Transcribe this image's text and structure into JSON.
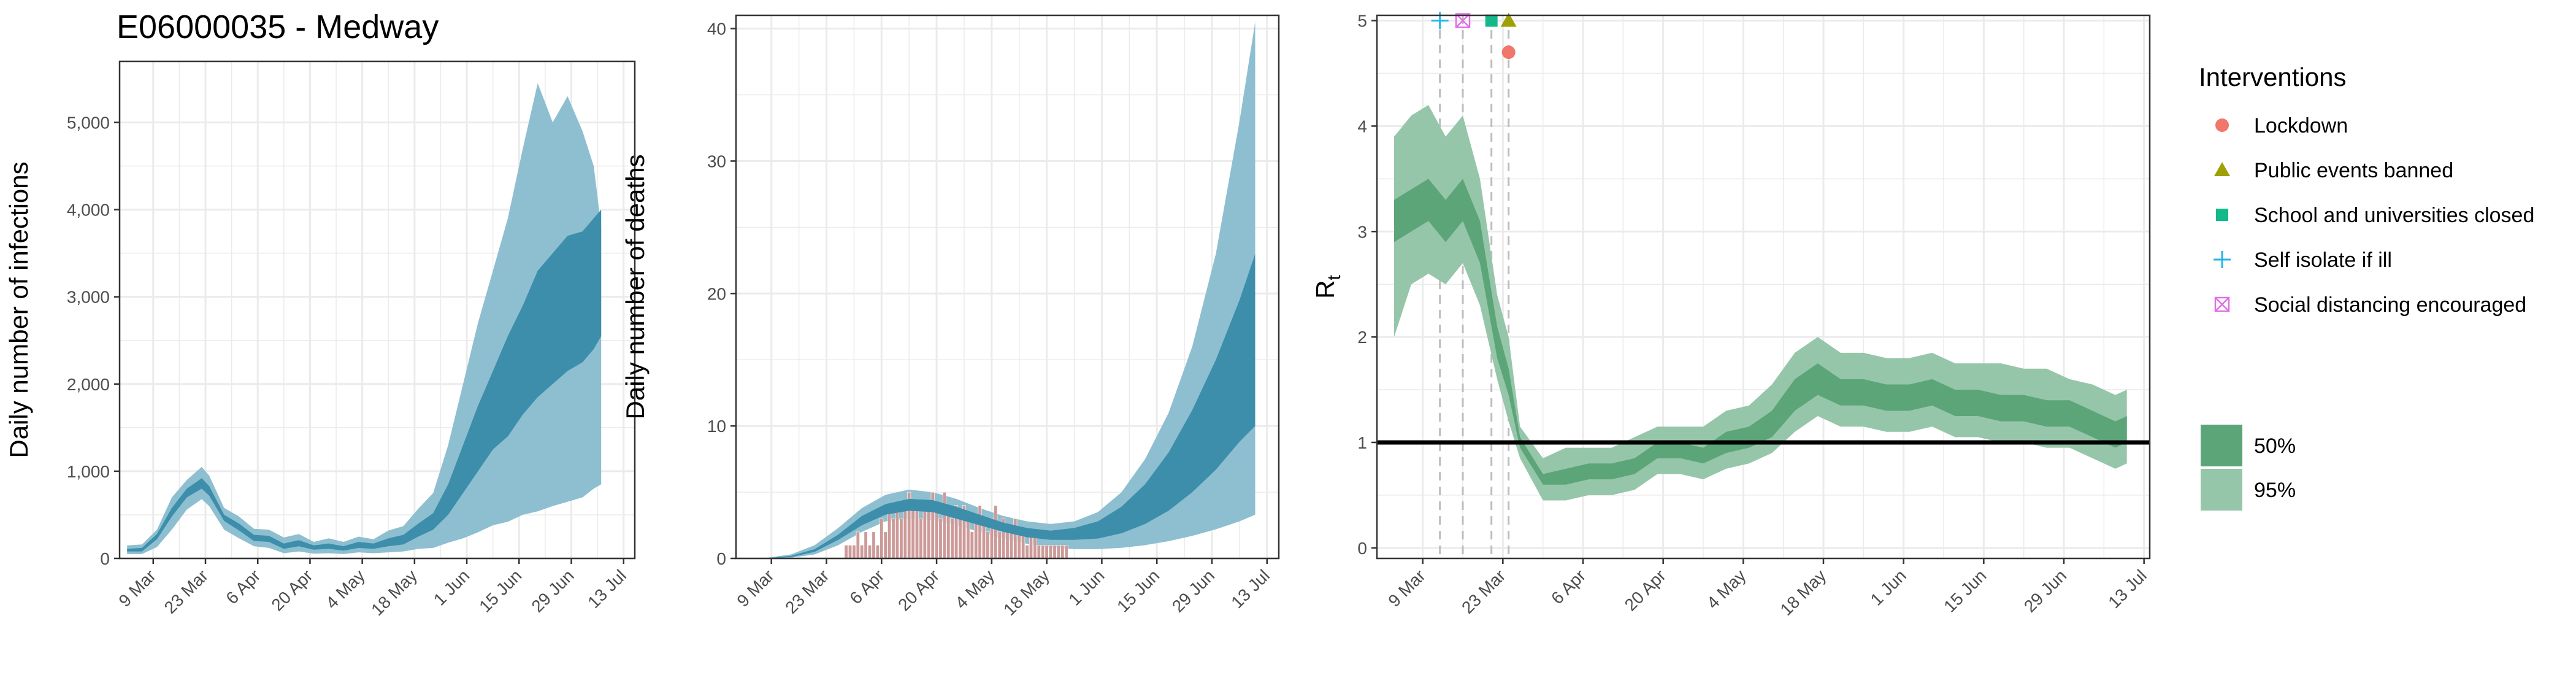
{
  "page_title": "E06000035 - Medway",
  "colors": {
    "infections_95": "#8dbfd0",
    "infections_50": "#3d8eab",
    "deaths_observed": "#cc9a98",
    "rt_95": "#96c6a9",
    "rt_50": "#5ca579",
    "reference_line": "#000000",
    "intervention_lines": "#bdbdbd",
    "grid": "#ebebeb"
  },
  "x_tick_labels": [
    "9 Mar",
    "23 Mar",
    "6 Apr",
    "20 Apr",
    "4 May",
    "18 May",
    "1 Jun",
    "15 Jun",
    "29 Jun",
    "13 Jul"
  ],
  "rt_x_tick_labels": [
    "9 Mar",
    "23 Mar",
    "6 Apr",
    "20 Apr",
    "4 May",
    "18 May",
    "1 Jun",
    "15 Jun",
    "29 Jun",
    "13 Jul"
  ],
  "legend": {
    "interventions_title": "Interventions",
    "interventions": [
      {
        "label": "Lockdown",
        "color": "#f0776b",
        "shape": "circle"
      },
      {
        "label": "Public events banned",
        "color": "#9ea007",
        "shape": "triangle"
      },
      {
        "label": "School and universities closed",
        "color": "#13b98a",
        "shape": "square"
      },
      {
        "label": "Self isolate if ill",
        "color": "#27b4e6",
        "shape": "plus"
      },
      {
        "label": "Social distancing encouraged",
        "color": "#e16ee6",
        "shape": "boxed-cross"
      }
    ],
    "bands": [
      {
        "label": "50%",
        "color": "#5ca579"
      },
      {
        "label": "95%",
        "color": "#96c6a9"
      }
    ]
  },
  "chart_data": [
    {
      "type": "area",
      "title": "",
      "xlabel": "",
      "ylabel": "Daily number of infections",
      "x_range": [
        "2020-02-29",
        "2020-07-16"
      ],
      "ylim": [
        0,
        5700
      ],
      "y_ticks": [
        0,
        1000,
        2000,
        3000,
        4000,
        5000
      ],
      "y_tick_labels": [
        "0",
        "1,000",
        "2,000",
        "3,000",
        "4,000",
        "5,000"
      ],
      "grid": true,
      "series": [
        {
          "name": "95%",
          "x": [
            "2020-03-02",
            "2020-03-06",
            "2020-03-10",
            "2020-03-14",
            "2020-03-18",
            "2020-03-22",
            "2020-03-24",
            "2020-03-28",
            "2020-04-01",
            "2020-04-05",
            "2020-04-09",
            "2020-04-13",
            "2020-04-17",
            "2020-04-21",
            "2020-04-25",
            "2020-04-29",
            "2020-05-03",
            "2020-05-07",
            "2020-05-11",
            "2020-05-15",
            "2020-05-19",
            "2020-05-23",
            "2020-05-27",
            "2020-05-31",
            "2020-06-04",
            "2020-06-08",
            "2020-06-12",
            "2020-06-16",
            "2020-06-20",
            "2020-06-24",
            "2020-06-28",
            "2020-07-02",
            "2020-07-05",
            "2020-07-07"
          ],
          "lower": [
            50,
            50,
            130,
            330,
            560,
            680,
            600,
            330,
            230,
            140,
            120,
            60,
            80,
            55,
            60,
            50,
            70,
            60,
            70,
            80,
            110,
            120,
            180,
            230,
            300,
            380,
            420,
            500,
            540,
            600,
            650,
            700,
            800,
            850
          ],
          "upper": [
            150,
            160,
            330,
            700,
            900,
            1050,
            950,
            580,
            480,
            340,
            330,
            240,
            280,
            190,
            230,
            190,
            250,
            220,
            320,
            370,
            570,
            750,
            1300,
            2000,
            2700,
            3300,
            3900,
            4700,
            5450,
            5000,
            5300,
            4900,
            4500,
            3800
          ]
        },
        {
          "name": "50%",
          "x": [
            "2020-03-02",
            "2020-03-06",
            "2020-03-10",
            "2020-03-14",
            "2020-03-18",
            "2020-03-22",
            "2020-03-24",
            "2020-03-28",
            "2020-04-01",
            "2020-04-05",
            "2020-04-09",
            "2020-04-13",
            "2020-04-17",
            "2020-04-21",
            "2020-04-25",
            "2020-04-29",
            "2020-05-03",
            "2020-05-07",
            "2020-05-11",
            "2020-05-15",
            "2020-05-19",
            "2020-05-23",
            "2020-05-27",
            "2020-05-31",
            "2020-06-04",
            "2020-06-08",
            "2020-06-12",
            "2020-06-16",
            "2020-06-20",
            "2020-06-24",
            "2020-06-28",
            "2020-07-02",
            "2020-07-05",
            "2020-07-07"
          ],
          "lower": [
            80,
            80,
            220,
            480,
            700,
            800,
            720,
            430,
            320,
            200,
            190,
            110,
            140,
            100,
            110,
            90,
            120,
            110,
            140,
            160,
            250,
            330,
            500,
            750,
            1000,
            1250,
            1400,
            1650,
            1850,
            2000,
            2150,
            2250,
            2400,
            2550
          ],
          "upper": [
            110,
            120,
            280,
            580,
            800,
            920,
            830,
            500,
            400,
            270,
            260,
            170,
            210,
            150,
            170,
            140,
            190,
            170,
            230,
            270,
            400,
            520,
            850,
            1300,
            1750,
            2150,
            2550,
            2900,
            3300,
            3500,
            3700,
            3750,
            3900,
            4000
          ]
        }
      ]
    },
    {
      "type": "bar",
      "title": "",
      "xlabel": "",
      "ylabel": "Daily number of deaths",
      "x_range": [
        "2020-02-29",
        "2020-07-16"
      ],
      "ylim": [
        0,
        41
      ],
      "y_ticks": [
        0,
        10,
        20,
        30,
        40
      ],
      "y_tick_labels": [
        "0",
        "10",
        "20",
        "30",
        "40"
      ],
      "grid": true,
      "observed_deaths": {
        "x": [
          "2020-03-28",
          "2020-03-29",
          "2020-03-30",
          "2020-03-31",
          "2020-04-01",
          "2020-04-02",
          "2020-04-03",
          "2020-04-04",
          "2020-04-05",
          "2020-04-06",
          "2020-04-07",
          "2020-04-08",
          "2020-04-09",
          "2020-04-10",
          "2020-04-11",
          "2020-04-12",
          "2020-04-13",
          "2020-04-14",
          "2020-04-15",
          "2020-04-16",
          "2020-04-17",
          "2020-04-18",
          "2020-04-19",
          "2020-04-20",
          "2020-04-21",
          "2020-04-22",
          "2020-04-23",
          "2020-04-24",
          "2020-04-25",
          "2020-04-26",
          "2020-04-27",
          "2020-04-28",
          "2020-04-29",
          "2020-04-30",
          "2020-05-01",
          "2020-05-02",
          "2020-05-03",
          "2020-05-04",
          "2020-05-05",
          "2020-05-06",
          "2020-05-07",
          "2020-05-08",
          "2020-05-09",
          "2020-05-10",
          "2020-05-11",
          "2020-05-12",
          "2020-05-13",
          "2020-05-14",
          "2020-05-15",
          "2020-05-16",
          "2020-05-17",
          "2020-05-18",
          "2020-05-19",
          "2020-05-20",
          "2020-05-21",
          "2020-05-22",
          "2020-05-23"
        ],
        "values": [
          1,
          1,
          1,
          2,
          1,
          2,
          1,
          2,
          1,
          3,
          2,
          4,
          3,
          4,
          3,
          4,
          5,
          4,
          4,
          3,
          4,
          4,
          5,
          4,
          3,
          5,
          4,
          3,
          4,
          3,
          4,
          3,
          2,
          3,
          4,
          3,
          2,
          3,
          4,
          2,
          3,
          2,
          2,
          3,
          2,
          2,
          1,
          2,
          2,
          1,
          1,
          1,
          1,
          1,
          1,
          1,
          1
        ]
      },
      "series": [
        {
          "name": "95%",
          "x": [
            "2020-03-02",
            "2020-03-08",
            "2020-03-14",
            "2020-03-20",
            "2020-03-26",
            "2020-04-01",
            "2020-04-07",
            "2020-04-13",
            "2020-04-19",
            "2020-04-25",
            "2020-05-01",
            "2020-05-07",
            "2020-05-13",
            "2020-05-19",
            "2020-05-25",
            "2020-05-31",
            "2020-06-06",
            "2020-06-12",
            "2020-06-18",
            "2020-06-24",
            "2020-06-30",
            "2020-07-06",
            "2020-07-10"
          ],
          "lower": [
            0,
            0,
            0.05,
            0.3,
            1.0,
            2.0,
            2.8,
            3.0,
            2.9,
            2.5,
            2.0,
            1.5,
            1.1,
            0.8,
            0.7,
            0.7,
            0.8,
            1.0,
            1.3,
            1.7,
            2.2,
            2.8,
            3.3
          ],
          "upper": [
            0,
            0.05,
            0.3,
            1.0,
            2.3,
            3.8,
            4.8,
            5.2,
            5.0,
            4.5,
            3.8,
            3.2,
            2.8,
            2.6,
            2.8,
            3.5,
            5.0,
            7.5,
            11,
            16,
            23,
            33,
            40.5
          ]
        },
        {
          "name": "50%",
          "x": [
            "2020-03-02",
            "2020-03-08",
            "2020-03-14",
            "2020-03-20",
            "2020-03-26",
            "2020-04-01",
            "2020-04-07",
            "2020-04-13",
            "2020-04-19",
            "2020-04-25",
            "2020-05-01",
            "2020-05-07",
            "2020-05-13",
            "2020-05-19",
            "2020-05-25",
            "2020-05-31",
            "2020-06-06",
            "2020-06-12",
            "2020-06-18",
            "2020-06-24",
            "2020-06-30",
            "2020-07-06",
            "2020-07-10"
          ],
          "lower": [
            0,
            0,
            0.1,
            0.5,
            1.4,
            2.5,
            3.3,
            3.6,
            3.5,
            3.0,
            2.5,
            2.0,
            1.6,
            1.4,
            1.4,
            1.5,
            1.9,
            2.6,
            3.6,
            5.0,
            6.7,
            8.8,
            10
          ]
        },
        {
          "name": "50% upper",
          "x": [
            "2020-03-02",
            "2020-03-08",
            "2020-03-14",
            "2020-03-20",
            "2020-03-26",
            "2020-04-01",
            "2020-04-07",
            "2020-04-13",
            "2020-04-19",
            "2020-04-25",
            "2020-05-01",
            "2020-05-07",
            "2020-05-13",
            "2020-05-19",
            "2020-05-25",
            "2020-05-31",
            "2020-06-06",
            "2020-06-12",
            "2020-06-18",
            "2020-06-24",
            "2020-06-30",
            "2020-07-06",
            "2020-07-10"
          ],
          "upper": [
            0,
            0.02,
            0.2,
            0.7,
            1.8,
            3.2,
            4.1,
            4.5,
            4.4,
            3.9,
            3.3,
            2.7,
            2.3,
            2.1,
            2.3,
            2.8,
            3.9,
            5.6,
            8.0,
            11.2,
            15.0,
            19.5,
            23
          ]
        }
      ]
    },
    {
      "type": "area",
      "title": "",
      "xlabel": "",
      "ylabel": "R",
      "ylabel_subscript": "t",
      "x_range": [
        "2020-03-01",
        "2020-07-14"
      ],
      "ylim": [
        -0.1,
        5.05
      ],
      "y_ticks": [
        0,
        1,
        2,
        3,
        4,
        5
      ],
      "y_tick_labels": [
        "0",
        "1",
        "2",
        "3",
        "4",
        "5"
      ],
      "grid": true,
      "reference_line": 1,
      "intervention_dates": [
        "2020-03-12",
        "2020-03-16",
        "2020-03-21",
        "2020-03-24"
      ],
      "intervention_markers": [
        {
          "label": "Self isolate if ill",
          "date": "2020-03-12",
          "y": 5.0
        },
        {
          "label": "Social distancing encouraged",
          "date": "2020-03-16",
          "y": 5.0
        },
        {
          "label": "School and universities closed",
          "date": "2020-03-21",
          "y": 5.0
        },
        {
          "label": "Public events banned",
          "date": "2020-03-24",
          "y": 5.0
        },
        {
          "label": "Lockdown",
          "date": "2020-03-24",
          "y": 4.7
        }
      ],
      "series": [
        {
          "name": "95%",
          "x": [
            "2020-03-04",
            "2020-03-07",
            "2020-03-10",
            "2020-03-13",
            "2020-03-16",
            "2020-03-19",
            "2020-03-22",
            "2020-03-24",
            "2020-03-26",
            "2020-03-30",
            "2020-04-03",
            "2020-04-07",
            "2020-04-11",
            "2020-04-15",
            "2020-04-19",
            "2020-04-23",
            "2020-04-27",
            "2020-05-01",
            "2020-05-05",
            "2020-05-09",
            "2020-05-13",
            "2020-05-17",
            "2020-05-21",
            "2020-05-25",
            "2020-05-29",
            "2020-06-02",
            "2020-06-06",
            "2020-06-10",
            "2020-06-14",
            "2020-06-18",
            "2020-06-22",
            "2020-06-26",
            "2020-06-30",
            "2020-07-04",
            "2020-07-08",
            "2020-07-10"
          ],
          "lower": [
            2.0,
            2.5,
            2.6,
            2.5,
            2.7,
            2.3,
            1.6,
            1.2,
            0.85,
            0.45,
            0.45,
            0.5,
            0.5,
            0.55,
            0.7,
            0.7,
            0.65,
            0.75,
            0.8,
            0.9,
            1.1,
            1.25,
            1.15,
            1.15,
            1.1,
            1.1,
            1.15,
            1.05,
            1.05,
            1.0,
            1.0,
            0.95,
            0.95,
            0.85,
            0.75,
            0.8
          ],
          "upper": [
            3.9,
            4.1,
            4.2,
            3.9,
            4.1,
            3.5,
            2.4,
            2.0,
            1.15,
            0.85,
            0.95,
            0.95,
            0.95,
            1.05,
            1.15,
            1.15,
            1.15,
            1.3,
            1.35,
            1.55,
            1.85,
            2.0,
            1.85,
            1.85,
            1.8,
            1.8,
            1.85,
            1.75,
            1.75,
            1.75,
            1.7,
            1.7,
            1.6,
            1.55,
            1.45,
            1.5
          ]
        },
        {
          "name": "50%",
          "x": [
            "2020-03-04",
            "2020-03-07",
            "2020-03-10",
            "2020-03-13",
            "2020-03-16",
            "2020-03-19",
            "2020-03-22",
            "2020-03-24",
            "2020-03-26",
            "2020-03-30",
            "2020-04-03",
            "2020-04-07",
            "2020-04-11",
            "2020-04-15",
            "2020-04-19",
            "2020-04-23",
            "2020-04-27",
            "2020-05-01",
            "2020-05-05",
            "2020-05-09",
            "2020-05-13",
            "2020-05-17",
            "2020-05-21",
            "2020-05-25",
            "2020-05-29",
            "2020-06-02",
            "2020-06-06",
            "2020-06-10",
            "2020-06-14",
            "2020-06-18",
            "2020-06-22",
            "2020-06-26",
            "2020-06-30",
            "2020-07-04",
            "2020-07-08",
            "2020-07-10"
          ],
          "lower": [
            2.9,
            3.0,
            3.1,
            2.9,
            3.1,
            2.7,
            1.8,
            1.45,
            0.95,
            0.6,
            0.6,
            0.65,
            0.65,
            0.7,
            0.85,
            0.85,
            0.8,
            0.9,
            0.95,
            1.05,
            1.3,
            1.45,
            1.35,
            1.35,
            1.3,
            1.3,
            1.35,
            1.25,
            1.25,
            1.2,
            1.2,
            1.15,
            1.15,
            1.05,
            0.95,
            1.0
          ],
          "upper": [
            3.3,
            3.4,
            3.5,
            3.3,
            3.5,
            3.1,
            2.1,
            1.7,
            1.05,
            0.7,
            0.75,
            0.8,
            0.8,
            0.85,
            1.0,
            1.0,
            0.95,
            1.1,
            1.15,
            1.3,
            1.6,
            1.75,
            1.6,
            1.6,
            1.55,
            1.55,
            1.6,
            1.5,
            1.5,
            1.45,
            1.45,
            1.4,
            1.4,
            1.3,
            1.2,
            1.25
          ]
        }
      ]
    }
  ]
}
